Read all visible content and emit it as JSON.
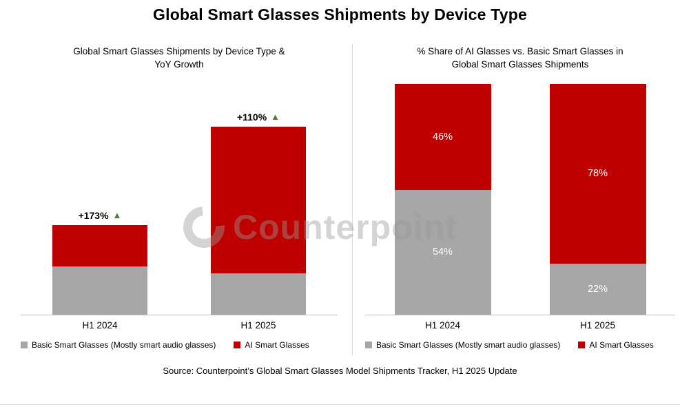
{
  "page": {
    "title": "Global Smart Glasses Shipments by Device Type",
    "source": "Source: Counterpoint’s Global Smart Glasses Model Shipments Tracker, H1 2025 Update",
    "watermark": "Counterpoint"
  },
  "colors": {
    "basic_gray": "#A6A6A6",
    "ai_red": "#C00000",
    "growth_green": "#4E7B34",
    "axis_line": "#BFBFBF",
    "watermark_gray": "#C9C9C9",
    "background": "#FFFFFF"
  },
  "chart_data": [
    {
      "type": "bar",
      "stacking": "stacked",
      "title": "Global Smart Glasses Shipments by Device Type & YoY Growth",
      "title_lines": [
        "Global Smart Glasses Shipments by Device Type &",
        "YoY Growth"
      ],
      "categories": [
        "H1 2024",
        "H1 2025"
      ],
      "series": [
        {
          "name": "Basic Smart Glasses (Mostly smart audio glasses)",
          "color": "#A6A6A6",
          "values": [
            54,
            46
          ]
        },
        {
          "name": "AI Smart Glasses",
          "color": "#C00000",
          "values": [
            46,
            164
          ]
        }
      ],
      "totals_indexed": [
        100,
        210
      ],
      "annotations": [
        {
          "category": "H1 2024",
          "label": "+173%",
          "marker": "up-triangle"
        },
        {
          "category": "H1 2025",
          "label": "+110%",
          "marker": "up-triangle"
        }
      ],
      "y_axis": {
        "visible": false,
        "note": "no tick labels shown; values are indexed shipment volumes (H1 2024 total = 100)"
      },
      "legend_position": "bottom-left",
      "grid": false
    },
    {
      "type": "bar",
      "stacking": "100%-stacked",
      "title": "% Share of AI Glasses vs. Basic Smart Glasses in Global Smart Glasses Shipments",
      "title_lines": [
        "% Share of AI Glasses vs. Basic Smart Glasses in",
        "Global Smart Glasses Shipments"
      ],
      "categories": [
        "H1 2024",
        "H1 2025"
      ],
      "series": [
        {
          "name": "Basic Smart Glasses (Mostly smart audio glasses)",
          "color": "#A6A6A6",
          "values": [
            54,
            22
          ],
          "labels": [
            "54%",
            "22%"
          ]
        },
        {
          "name": "AI Smart Glasses",
          "color": "#C00000",
          "values": [
            46,
            78
          ],
          "labels": [
            "46%",
            "78%"
          ]
        }
      ],
      "y_axis": {
        "visible": false,
        "range_percent": [
          0,
          100
        ]
      },
      "data_label_color": "#FFFFFF",
      "legend_position": "bottom-left",
      "grid": false
    }
  ]
}
